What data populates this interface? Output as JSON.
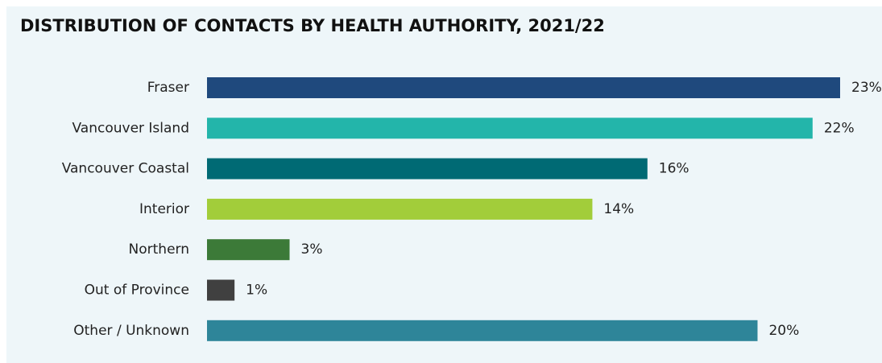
{
  "chart_data": {
    "type": "bar",
    "orientation": "horizontal",
    "title": "DISTRIBUTION OF CONTACTS BY HEALTH AUTHORITY, 2021/22",
    "categories": [
      "Fraser",
      "Vancouver Island",
      "Vancouver Coastal",
      "Interior",
      "Northern",
      "Out of Province",
      "Other / Unknown"
    ],
    "values": [
      23,
      22,
      16,
      14,
      3,
      1,
      20
    ],
    "value_labels": [
      "23%",
      "22%",
      "16%",
      "14%",
      "3%",
      "1%",
      "20%"
    ],
    "colors": [
      "#1f497d",
      "#23b5aa",
      "#006a74",
      "#a2cd3a",
      "#3c7a38",
      "#404040",
      "#2e8599"
    ]
  }
}
